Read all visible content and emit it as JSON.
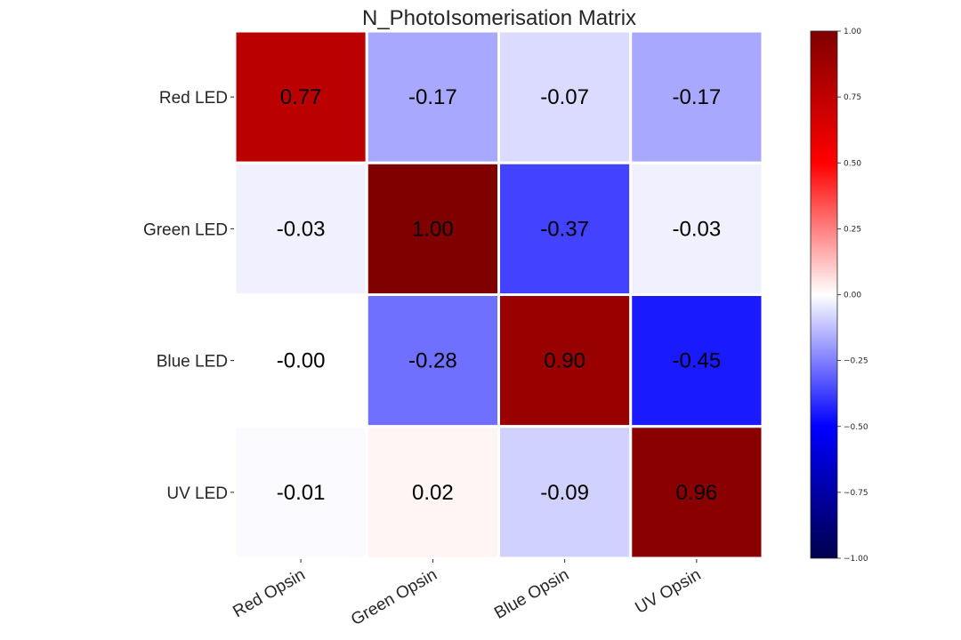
{
  "chart_data": {
    "type": "heatmap",
    "title": "N_PhotoIsomerisation Matrix",
    "rows": [
      "Red LED",
      "Green LED",
      "Blue LED",
      "UV LED"
    ],
    "columns": [
      "Red Opsin",
      "Green Opsin",
      "Blue Opsin",
      "UV Opsin"
    ],
    "values": [
      [
        0.77,
        -0.17,
        -0.07,
        -0.17
      ],
      [
        -0.03,
        1.0,
        -0.37,
        -0.03
      ],
      [
        -0.0,
        -0.28,
        0.9,
        -0.45
      ],
      [
        -0.01,
        0.02,
        -0.09,
        0.96
      ]
    ],
    "value_labels": [
      [
        "0.77",
        "-0.17",
        "-0.07",
        "-0.17"
      ],
      [
        "-0.03",
        "1.00",
        "-0.37",
        "-0.03"
      ],
      [
        "-0.00",
        "-0.28",
        "0.90",
        "-0.45"
      ],
      [
        "-0.01",
        "0.02",
        "-0.09",
        "0.96"
      ]
    ],
    "colormap": "seismic",
    "vmin": -1.0,
    "vmax": 1.0,
    "colorbar_ticks": [
      1.0,
      0.75,
      0.5,
      0.25,
      0.0,
      -0.25,
      -0.5,
      -0.75,
      -1.0
    ],
    "colorbar_tick_labels": [
      "1.00",
      "0.75",
      "0.50",
      "0.25",
      "0.00",
      "−0.25",
      "−0.50",
      "−0.75",
      "−1.00"
    ],
    "cell_separator_color": "#ffffff",
    "grid": false
  }
}
